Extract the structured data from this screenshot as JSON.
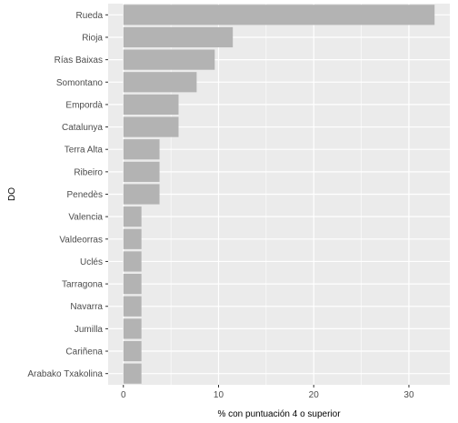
{
  "chart_data": {
    "type": "bar",
    "orientation": "horizontal",
    "categories": [
      "Rueda",
      "Rioja",
      "Rías Baixas",
      "Somontano",
      "Empordà",
      "Catalunya",
      "Terra Alta",
      "Ribeiro",
      "Penedès",
      "Valencia",
      "Valdeorras",
      "Uclés",
      "Tarragona",
      "Navarra",
      "Jumilla",
      "Cariñena",
      "Arabako Txakolina"
    ],
    "values": [
      32.7,
      11.5,
      9.6,
      7.7,
      5.8,
      5.8,
      3.8,
      3.8,
      3.8,
      1.9,
      1.9,
      1.9,
      1.9,
      1.9,
      1.9,
      1.9,
      1.9
    ],
    "xlabel": "% con puntuación 4 o superior",
    "ylabel": "DO",
    "xlim": [
      -1.6,
      34.3
    ],
    "x_ticks": [
      0,
      10,
      20,
      30
    ],
    "grid": true,
    "colors": {
      "panel": "#ebebeb",
      "grid_major": "#ffffff",
      "bar": "#b3b3b3",
      "tick_text": "#4d4d4d"
    }
  }
}
